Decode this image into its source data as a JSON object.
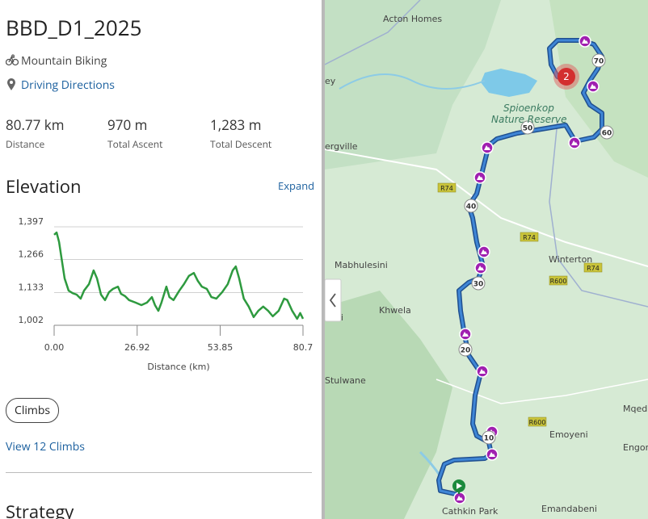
{
  "header": {
    "title": "BBD_D1_2025",
    "sport": "Mountain Biking",
    "directions": "Driving Directions"
  },
  "stats": [
    {
      "value": "80.77 km",
      "label": "Distance"
    },
    {
      "value": "970 m",
      "label": "Total Ascent"
    },
    {
      "value": "1,283 m",
      "label": "Total Descent"
    }
  ],
  "elevation": {
    "heading": "Elevation",
    "expand": "Expand"
  },
  "chart_data": {
    "type": "line",
    "xlabel": "Distance (km)",
    "color": "#2e9a3f",
    "grid": true,
    "xlim": [
      0,
      80.7
    ],
    "ylim": [
      1002,
      1397
    ],
    "xticks": [
      {
        "value": 0,
        "label": "0.00"
      },
      26.92,
      53.85,
      80.7
    ],
    "yticks": [
      {
        "value": 1002,
        "label": "1,002"
      },
      {
        "value": 1133,
        "label": "1,133"
      },
      {
        "value": 1266,
        "label": "1,266"
      },
      {
        "value": 1397,
        "label": "1,397"
      }
    ],
    "x": [
      0,
      0.8,
      1.6,
      2.4,
      3.4,
      4.7,
      6.0,
      7.3,
      8.6,
      9.7,
      11.3,
      12.8,
      13.9,
      15.2,
      16.5,
      17.8,
      19.1,
      20.7,
      21.7,
      23.0,
      24.3,
      26.4,
      28.3,
      30.1,
      31.7,
      32.7,
      33.8,
      34.8,
      36.4,
      37.4,
      38.7,
      40.6,
      42.1,
      43.7,
      45.3,
      46.6,
      47.9,
      49.5,
      51.0,
      52.6,
      54.5,
      56.3,
      57.9,
      58.9,
      60.0,
      61.5,
      63.1,
      64.7,
      66.2,
      67.8,
      69.4,
      70.9,
      72.8,
      74.6,
      75.6,
      77.2,
      78.8,
      79.8,
      80.7
    ],
    "series": [
      {
        "name": "Elevation",
        "values": [
          1365,
          1374,
          1336,
          1271,
          1190,
          1141,
          1131,
          1125,
          1109,
          1141,
          1167,
          1222,
          1190,
          1125,
          1103,
          1135,
          1148,
          1157,
          1128,
          1119,
          1103,
          1093,
          1083,
          1093,
          1115,
          1083,
          1060,
          1093,
          1157,
          1115,
          1103,
          1141,
          1167,
          1200,
          1212,
          1180,
          1157,
          1148,
          1115,
          1109,
          1135,
          1167,
          1222,
          1238,
          1190,
          1109,
          1077,
          1035,
          1060,
          1077,
          1060,
          1038,
          1060,
          1109,
          1103,
          1060,
          1028,
          1051,
          1028
        ]
      }
    ]
  },
  "climbs": {
    "button": "Climbs",
    "link": "View 12 Climbs"
  },
  "strategy": "Strategy",
  "map": {
    "labels": [
      "Acton Homes",
      "Spioenkop",
      "Nature Reserve",
      "ergville",
      "Mabhulesini",
      "Winterton",
      "Khwela",
      "Stulwane",
      "Emoyeni",
      "Cathkin Park",
      "Emandabeni",
      "Mqed",
      "Engor",
      "ey",
      "eniini"
    ],
    "roads": [
      "R74",
      "R74",
      "R74",
      "R600",
      "R600"
    ],
    "km_markers": [
      "10",
      "20",
      "30",
      "40",
      "50",
      "60",
      "70"
    ],
    "cluster": "2"
  }
}
